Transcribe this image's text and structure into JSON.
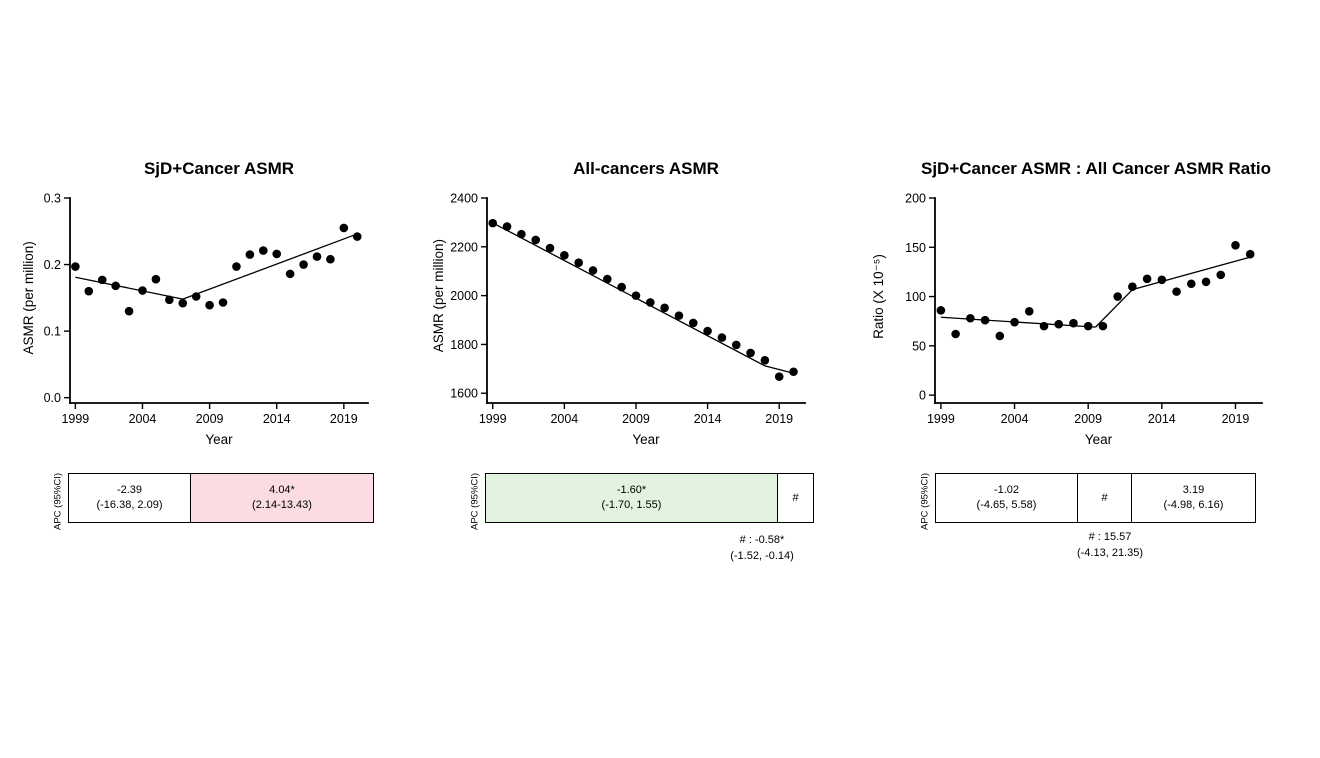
{
  "colors": {
    "marker": "#000000",
    "pink_cell": "#fadce2",
    "green_cell": "#e2f4e0",
    "axis": "#000000"
  },
  "panels": [
    {
      "title": "SjD+Cancer ASMR",
      "apc_label": "APC (95%CI)",
      "apc_cells": [
        {
          "line1": "-2.39",
          "line2": "(-16.38, 2.09)"
        },
        {
          "line1": "4.04*",
          "line2": "(2.14-13.43)"
        }
      ]
    },
    {
      "title": "All-cancers ASMR",
      "apc_label": "APC (95%CI)",
      "apc_cells": [
        {
          "line1": "-1.60*",
          "line2": "(-1.70, 1.55)"
        },
        {
          "line1": "#",
          "line2": ""
        }
      ],
      "footnote_line1": "# :  -0.58*",
      "footnote_line2": "(-1.52, -0.14)"
    },
    {
      "title": "SjD+Cancer ASMR : All Cancer ASMR Ratio",
      "apc_label": "APC (95%CI)",
      "apc_cells": [
        {
          "line1": "-1.02",
          "line2": "(-4.65, 5.58)"
        },
        {
          "line1": "#",
          "line2": ""
        },
        {
          "line1": "3.19",
          "line2": "(-4.98, 6.16)"
        }
      ],
      "footnote_line1": "# : 15.57",
      "footnote_line2": "(-4.13, 21.35)"
    }
  ],
  "chart_data": [
    {
      "type": "scatter",
      "title": "SjD+Cancer ASMR",
      "xlabel": "Year",
      "ylabel": "ASMR (per million)",
      "xlim": [
        1998.6,
        2020.8
      ],
      "ylim": [
        -0.008,
        0.3
      ],
      "xticks": [
        1999,
        2004,
        2009,
        2014,
        2019
      ],
      "yticks": [
        0.0,
        0.1,
        0.2,
        0.3
      ],
      "ytick_labels": [
        "0.0",
        "0.1",
        "0.2",
        "0.3"
      ],
      "x": [
        1999,
        2000,
        2001,
        2002,
        2003,
        2004,
        2005,
        2006,
        2007,
        2008,
        2009,
        2010,
        2011,
        2012,
        2013,
        2014,
        2015,
        2016,
        2017,
        2018,
        2019,
        2020
      ],
      "y": [
        0.197,
        0.16,
        0.177,
        0.168,
        0.13,
        0.161,
        0.178,
        0.147,
        0.142,
        0.152,
        0.139,
        0.143,
        0.197,
        0.215,
        0.221,
        0.216,
        0.186,
        0.2,
        0.212,
        0.208,
        0.255,
        0.242
      ],
      "trend": [
        [
          1999,
          0.181,
          2007,
          0.148
        ],
        [
          2007,
          0.148,
          2020,
          0.246
        ]
      ]
    },
    {
      "type": "scatter",
      "title": "All-cancers ASMR",
      "xlabel": "Year",
      "ylabel": "ASMR (per million)",
      "xlim": [
        1998.6,
        2020.8
      ],
      "ylim": [
        1560,
        2400
      ],
      "xticks": [
        1999,
        2004,
        2009,
        2014,
        2019
      ],
      "yticks": [
        1600,
        1800,
        2000,
        2200,
        2400
      ],
      "ytick_labels": [
        "1600",
        "1800",
        "2000",
        "2200",
        "2400"
      ],
      "x": [
        1999,
        2000,
        2001,
        2002,
        2003,
        2004,
        2005,
        2006,
        2007,
        2008,
        2009,
        2010,
        2011,
        2012,
        2013,
        2014,
        2015,
        2016,
        2017,
        2018,
        2019,
        2020
      ],
      "y": [
        2297,
        2283,
        2252,
        2228,
        2195,
        2165,
        2135,
        2103,
        2068,
        2035,
        2000,
        1972,
        1950,
        1918,
        1888,
        1855,
        1828,
        1798,
        1765,
        1735,
        1668,
        1688
      ],
      "trend": [
        [
          1999,
          2298,
          2018,
          1712
        ],
        [
          2018,
          1712,
          2020,
          1682
        ]
      ]
    },
    {
      "type": "scatter",
      "title": "SjD+Cancer ASMR : All Cancer ASMR Ratio",
      "xlabel": "Year",
      "ylabel": "Ratio (X 10⁻⁵)",
      "xlim": [
        1998.6,
        2020.8
      ],
      "ylim": [
        -8,
        200
      ],
      "xticks": [
        1999,
        2004,
        2009,
        2014,
        2019
      ],
      "yticks": [
        0,
        50,
        100,
        150,
        200
      ],
      "ytick_labels": [
        "0",
        "50",
        "100",
        "150",
        "200"
      ],
      "x": [
        1999,
        2000,
        2001,
        2002,
        2003,
        2004,
        2005,
        2006,
        2007,
        2008,
        2009,
        2010,
        2011,
        2012,
        2013,
        2014,
        2015,
        2016,
        2017,
        2018,
        2019,
        2020
      ],
      "y": [
        86,
        62,
        78,
        76,
        60,
        74,
        85,
        70,
        72,
        73,
        70,
        70,
        100,
        110,
        118,
        117,
        105,
        113,
        115,
        122,
        152,
        143
      ],
      "trend": [
        [
          1999,
          79,
          2009.5,
          69
        ],
        [
          2009.5,
          69,
          2012,
          107
        ],
        [
          2012,
          107,
          2020,
          140
        ]
      ]
    }
  ]
}
